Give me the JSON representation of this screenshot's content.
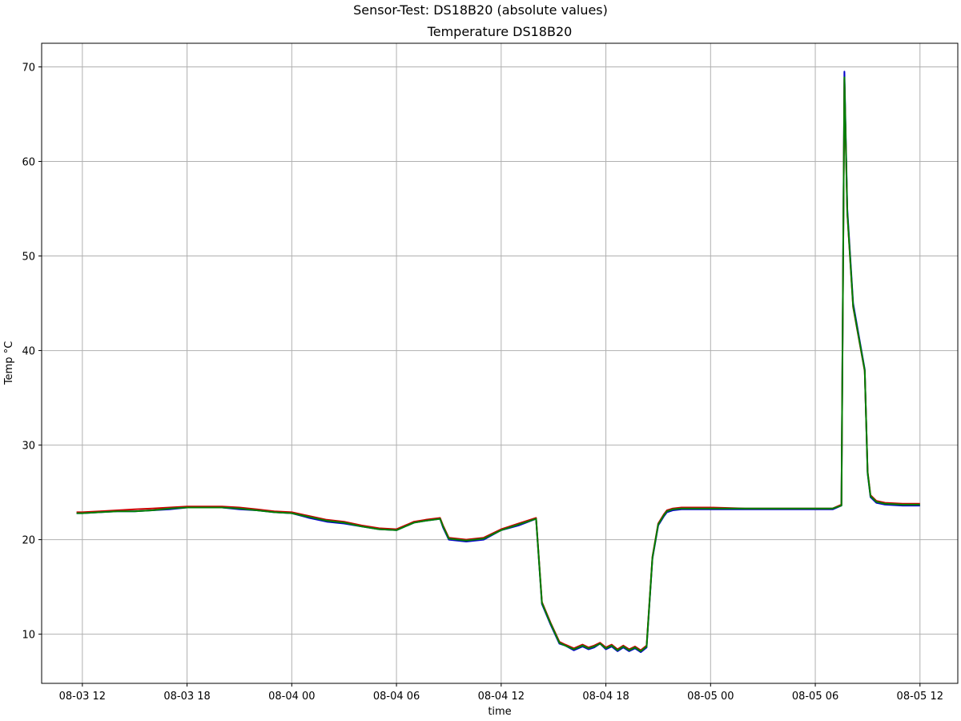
{
  "chart_data": {
    "type": "line",
    "suptitle": "Sensor-Test: DS18B20 (absolute values)",
    "title": "Temperature DS18B20",
    "xlabel": "time",
    "ylabel": "Temp °C",
    "grid": true,
    "legend": null,
    "xlim": [
      "2020-08-03 09:40",
      "2020-08-05 14:10"
    ],
    "ylim": [
      4.8,
      72.5
    ],
    "x_ticks": [
      "08-03 12",
      "08-03 18",
      "08-04 00",
      "08-04 06",
      "08-04 12",
      "08-04 18",
      "08-05 00",
      "08-05 06",
      "08-05 12"
    ],
    "y_ticks": [
      10,
      20,
      30,
      40,
      50,
      60,
      70
    ],
    "x": [
      "2020-08-03 11:40",
      "2020-08-03 12:00",
      "2020-08-03 13:00",
      "2020-08-03 14:00",
      "2020-08-03 15:00",
      "2020-08-03 16:00",
      "2020-08-03 17:00",
      "2020-08-03 18:00",
      "2020-08-03 19:00",
      "2020-08-03 20:00",
      "2020-08-03 21:00",
      "2020-08-03 22:00",
      "2020-08-03 23:00",
      "2020-08-04 00:00",
      "2020-08-04 01:00",
      "2020-08-04 02:00",
      "2020-08-04 03:00",
      "2020-08-04 04:00",
      "2020-08-04 05:00",
      "2020-08-04 06:00",
      "2020-08-04 07:00",
      "2020-08-04 07:40",
      "2020-08-04 08:30",
      "2020-08-04 08:40",
      "2020-08-04 09:00",
      "2020-08-04 10:00",
      "2020-08-04 11:00",
      "2020-08-04 12:00",
      "2020-08-04 13:00",
      "2020-08-04 14:00",
      "2020-08-04 14:20",
      "2020-08-04 14:50",
      "2020-08-04 15:20",
      "2020-08-04 15:40",
      "2020-08-04 16:10",
      "2020-08-04 16:40",
      "2020-08-04 17:00",
      "2020-08-04 17:20",
      "2020-08-04 17:40",
      "2020-08-04 18:00",
      "2020-08-04 18:20",
      "2020-08-04 18:40",
      "2020-08-04 19:00",
      "2020-08-04 19:20",
      "2020-08-04 19:40",
      "2020-08-04 20:00",
      "2020-08-04 20:20",
      "2020-08-04 20:40",
      "2020-08-04 21:00",
      "2020-08-04 21:20",
      "2020-08-04 21:30",
      "2020-08-04 21:50",
      "2020-08-04 22:20",
      "2020-08-04 23:00",
      "2020-08-05 00:00",
      "2020-08-05 02:00",
      "2020-08-05 04:00",
      "2020-08-05 06:00",
      "2020-08-05 07:00",
      "2020-08-05 07:30",
      "2020-08-05 07:40",
      "2020-08-05 07:50",
      "2020-08-05 08:10",
      "2020-08-05 08:50",
      "2020-08-05 09:00",
      "2020-08-05 09:10",
      "2020-08-05 09:30",
      "2020-08-05 10:00",
      "2020-08-05 11:00",
      "2020-08-05 12:00"
    ],
    "series": [
      {
        "color": "#0000cc",
        "values": [
          22.8,
          22.8,
          22.9,
          23.0,
          23.0,
          23.1,
          23.2,
          23.4,
          23.4,
          23.4,
          23.2,
          23.1,
          22.9,
          22.8,
          22.3,
          21.9,
          21.7,
          21.4,
          21.1,
          21.0,
          21.8,
          22.0,
          22.2,
          21.3,
          20.0,
          19.8,
          20.0,
          21.0,
          21.5,
          22.2,
          13.2,
          11.0,
          9.0,
          8.8,
          8.3,
          8.7,
          8.4,
          8.6,
          9.0,
          8.4,
          8.7,
          8.2,
          8.6,
          8.2,
          8.5,
          8.1,
          8.6,
          18.0,
          21.5,
          22.5,
          22.9,
          23.1,
          23.2,
          23.2,
          23.2,
          23.2,
          23.2,
          23.2,
          23.2,
          23.6,
          69.5,
          55.0,
          45.0,
          38.0,
          27.0,
          24.5,
          23.9,
          23.7,
          23.6,
          23.6
        ]
      },
      {
        "color": "#cc0000",
        "values": [
          22.9,
          22.9,
          23.0,
          23.1,
          23.2,
          23.3,
          23.4,
          23.5,
          23.5,
          23.5,
          23.4,
          23.2,
          23.0,
          22.9,
          22.5,
          22.1,
          21.9,
          21.5,
          21.2,
          21.1,
          21.9,
          22.1,
          22.3,
          21.5,
          20.2,
          20.0,
          20.2,
          21.1,
          21.7,
          22.3,
          13.4,
          11.2,
          9.2,
          8.9,
          8.5,
          8.9,
          8.6,
          8.8,
          9.1,
          8.6,
          8.9,
          8.4,
          8.8,
          8.4,
          8.7,
          8.3,
          8.8,
          18.2,
          21.7,
          22.7,
          23.1,
          23.3,
          23.4,
          23.4,
          23.4,
          23.3,
          23.3,
          23.3,
          23.3,
          23.7,
          68.7,
          54.5,
          44.6,
          37.8,
          27.2,
          24.7,
          24.1,
          23.9,
          23.8,
          23.8
        ]
      },
      {
        "color": "#008000",
        "values": [
          22.8,
          22.8,
          22.9,
          23.0,
          23.0,
          23.1,
          23.3,
          23.4,
          23.4,
          23.4,
          23.3,
          23.1,
          22.9,
          22.8,
          22.4,
          22.0,
          21.8,
          21.4,
          21.1,
          21.0,
          21.8,
          22.0,
          22.2,
          21.4,
          20.1,
          19.9,
          20.1,
          21.0,
          21.6,
          22.2,
          13.3,
          11.1,
          9.1,
          8.8,
          8.4,
          8.8,
          8.5,
          8.7,
          9.0,
          8.5,
          8.8,
          8.3,
          8.7,
          8.3,
          8.6,
          8.2,
          8.7,
          18.1,
          21.6,
          22.6,
          23.0,
          23.2,
          23.3,
          23.3,
          23.3,
          23.3,
          23.3,
          23.3,
          23.3,
          23.6,
          68.9,
          54.6,
          44.7,
          37.9,
          27.1,
          24.6,
          24.0,
          23.8,
          23.7,
          23.7
        ]
      }
    ]
  }
}
